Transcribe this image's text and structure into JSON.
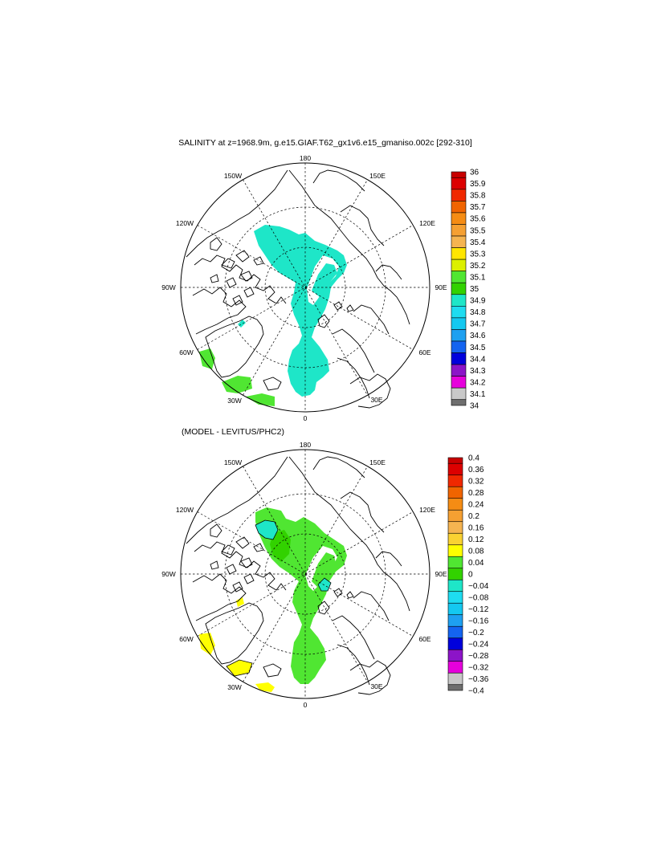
{
  "panels": [
    {
      "title": "SALINITY at z=1968.9m, g.e15.GIAF.T62_gx1v6.e15_gmaniso.002c [292-310]",
      "lon_labels": [
        "180",
        "150E",
        "120E",
        "90E",
        "60E",
        "30E",
        "0",
        "30W",
        "60W",
        "90W",
        "120W",
        "150W"
      ],
      "colorbar_labels": [
        "36",
        "35.9",
        "35.8",
        "35.7",
        "35.6",
        "35.5",
        "35.4",
        "35.3",
        "35.2",
        "35.1",
        "35",
        "34.9",
        "34.8",
        "34.7",
        "34.6",
        "34.5",
        "34.4",
        "34.3",
        "34.2",
        "34.1",
        "34"
      ],
      "colorbar_colors": [
        "#c80000",
        "#dc0000",
        "#f02800",
        "#f06400",
        "#f58c14",
        "#f5a032",
        "#f5b450",
        "#ffe600",
        "#dcf000",
        "#50e632",
        "#32d200",
        "#1ee6c8",
        "#1edcf0",
        "#14c8f0",
        "#1ea0f0",
        "#1464f0",
        "#0000dc",
        "#8c14c8",
        "#e600dc",
        "#c8c8c8",
        "#6e6e6e"
      ]
    },
    {
      "title": "(MODEL - LEVITUS/PHC2)",
      "lon_labels": [
        "180",
        "150E",
        "120E",
        "90E",
        "60E",
        "30E",
        "0",
        "30W",
        "60W",
        "90W",
        "120W",
        "150W"
      ],
      "colorbar_labels": [
        "0.4",
        "0.36",
        "0.32",
        "0.28",
        "0.24",
        "0.2",
        "0.16",
        "0.12",
        "0.08",
        "0.04",
        "0",
        "−0.04",
        "−0.08",
        "−0.12",
        "−0.16",
        "−0.2",
        "−0.24",
        "−0.28",
        "−0.32",
        "−0.36",
        "−0.4"
      ],
      "colorbar_colors": [
        "#c80000",
        "#dc0000",
        "#f02800",
        "#f06400",
        "#f58c14",
        "#f5a032",
        "#f5b450",
        "#fad232",
        "#ffff00",
        "#50e632",
        "#32d200",
        "#1ee6c8",
        "#1edcf0",
        "#14c8f0",
        "#1ea0f0",
        "#1464f0",
        "#0000dc",
        "#8c14c8",
        "#e600dc",
        "#c8c8c8",
        "#6e6e6e"
      ]
    }
  ],
  "fill_colors": {
    "salinity_main": "#1ee6c8",
    "salinity_atlantic": "#50e632",
    "diff_main": "#50e632",
    "diff_dark": "#32d200",
    "diff_neg": "#1ee6c8",
    "diff_pos": "#ffff00"
  }
}
